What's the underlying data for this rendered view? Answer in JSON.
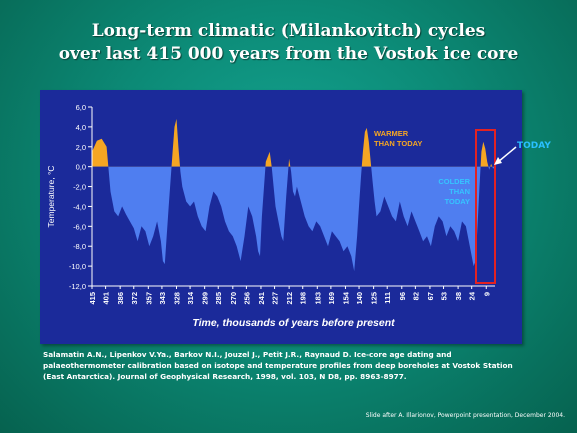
{
  "slide": {
    "title_line1": "Long-term climatic (Milankovitch) cycles",
    "title_line2": "over last 415 000 years from the Vostok ice core",
    "reference": "Salamatin A.N., Lipenkov V.Ya., Barkov N.I., Jouzel J., Petit J.R., Raynaud D. Ice-core age dating and palaeothermometer calibration based on isotope and temperature profiles from deep boreholes at Vostok  Station (East Antarctica). Journal of Geophysical Research, 1998, vol. 103, N D8, pp. 8963-8977.",
    "credit": "Slide after A. Illarionov, Powerpoint presentation, December 2004.",
    "today_label": "TODAY"
  },
  "chart_data": {
    "type": "area",
    "ylabel": "Temperature, °C",
    "xlabel": "Time, thousands of years before present",
    "ylim": [
      -12,
      6
    ],
    "xlim": [
      415,
      0
    ],
    "x_reversed": true,
    "yticks": [
      "6,0",
      "4,0",
      "2,0",
      "0,0",
      "-2,0",
      "-4,0",
      "-6,0",
      "-8,0",
      "-10,0",
      "-12,0"
    ],
    "xticks": [
      "415",
      "401",
      "386",
      "372",
      "357",
      "343",
      "328",
      "314",
      "299",
      "285",
      "270",
      "256",
      "241",
      "227",
      "212",
      "198",
      "183",
      "169",
      "154",
      "140",
      "125",
      "111",
      "96",
      "82",
      "67",
      "53",
      "38",
      "24",
      "9"
    ],
    "annotations": {
      "warmer": [
        "WARMER",
        "THAN TODAY"
      ],
      "colder": [
        "COLDER",
        "THAN",
        "TODAY"
      ]
    },
    "colors": {
      "background": "#1b2a9a",
      "colder_fill": "#4f7ef0",
      "warmer_fill": "#f5a623",
      "highlight": "#e32222"
    },
    "series": [
      {
        "x": [
          415,
          410,
          405,
          400,
          396,
          392,
          388,
          384,
          380,
          376,
          372,
          368,
          364,
          360,
          356,
          352,
          348,
          344,
          342,
          340,
          336,
          332,
          330,
          328,
          326,
          324,
          322,
          318,
          314,
          310,
          306,
          302,
          298,
          294,
          290,
          286,
          282,
          278,
          274,
          270,
          266,
          262,
          258,
          254,
          250,
          246,
          244,
          242,
          240,
          236,
          232,
          230,
          226,
          222,
          220,
          218,
          215,
          212,
          210,
          208,
          206,
          204,
          200,
          196,
          192,
          188,
          184,
          180,
          176,
          172,
          168,
          164,
          160,
          156,
          152,
          148,
          145,
          142,
          140,
          138,
          136,
          134,
          132,
          130,
          128,
          126,
          124,
          122,
          118,
          114,
          110,
          106,
          102,
          98,
          94,
          90,
          86,
          82,
          78,
          74,
          70,
          66,
          62,
          58,
          54,
          50,
          46,
          42,
          38,
          34,
          30,
          26,
          22,
          20,
          18,
          16,
          14,
          12,
          10,
          8,
          6,
          4,
          2,
          0
        ],
        "y": [
          1.5,
          2.6,
          2.8,
          2.0,
          -2.5,
          -4.5,
          -5.0,
          -4.0,
          -4.8,
          -5.5,
          -6.2,
          -7.5,
          -6.0,
          -6.5,
          -8.0,
          -7.0,
          -5.5,
          -7.5,
          -9.5,
          -9.8,
          -4.0,
          1.5,
          4.0,
          4.8,
          2.0,
          -0.5,
          -2.0,
          -3.5,
          -4.0,
          -3.5,
          -5.0,
          -6.0,
          -6.5,
          -4.0,
          -2.5,
          -3.0,
          -4.0,
          -5.5,
          -6.5,
          -7.0,
          -8.0,
          -9.5,
          -7.0,
          -4.0,
          -5.0,
          -7.0,
          -8.5,
          -9.0,
          -5.0,
          0.5,
          1.5,
          0.0,
          -4.0,
          -6.0,
          -7.0,
          -7.5,
          -3.0,
          0.8,
          -0.5,
          -2.5,
          -3.0,
          -2.0,
          -3.5,
          -5.0,
          -6.0,
          -6.5,
          -5.5,
          -6.0,
          -7.0,
          -8.0,
          -6.5,
          -7.0,
          -7.5,
          -8.5,
          -8.0,
          -9.0,
          -10.5,
          -7.0,
          -4.0,
          -1.0,
          1.5,
          3.5,
          3.9,
          2.5,
          0.5,
          -1.5,
          -3.5,
          -5.0,
          -4.5,
          -3.0,
          -4.0,
          -5.0,
          -5.5,
          -3.5,
          -5.0,
          -6.0,
          -4.5,
          -5.5,
          -6.5,
          -7.5,
          -7.0,
          -8.0,
          -6.0,
          -5.0,
          -5.5,
          -7.0,
          -6.0,
          -6.5,
          -7.5,
          -5.5,
          -6.0,
          -8.0,
          -10.0,
          -9.5,
          -6.0,
          -2.0,
          1.5,
          2.5,
          1.8,
          0.5,
          -0.3,
          0.3,
          -0.2,
          0.0
        ]
      }
    ]
  }
}
